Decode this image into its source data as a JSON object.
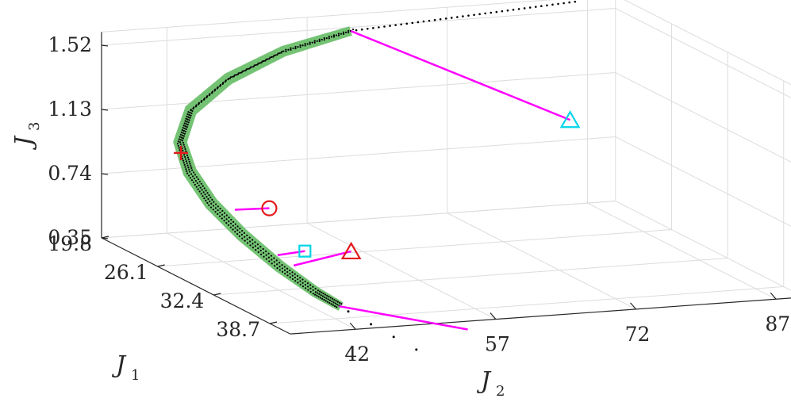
{
  "chart_data": {
    "type": "scatter",
    "projection": "3d",
    "axes": {
      "x": {
        "label": "J",
        "subscript": "1",
        "ticks": [
          "19.8",
          "26.1",
          "32.4",
          "38.7"
        ],
        "ticks_values": [
          19.8,
          26.1,
          32.4,
          38.7
        ],
        "range": [
          19.8,
          41
        ]
      },
      "y": {
        "label": "J",
        "subscript": "2",
        "ticks": [
          "42",
          "57",
          "72",
          "87"
        ],
        "ticks_values": [
          42,
          57,
          72,
          87
        ],
        "range": [
          35,
          90
        ]
      },
      "z": {
        "label": "J",
        "subscript": "3",
        "ticks": [
          "0.35",
          "1.13",
          "0.74",
          "1.52"
        ],
        "ticks_values": [
          0.35,
          1.13,
          0.74,
          1.52
        ],
        "range": [
          0.35,
          1.6
        ]
      }
    },
    "grid": true,
    "series": [
      {
        "kind": "surface",
        "color": "#5cb85c",
        "description_points": "front approximation band (J1,J2,J3)",
        "points": [
          [
            20.5,
            61,
            1.52
          ],
          [
            20.3,
            54,
            1.42
          ],
          [
            20.4,
            48,
            1.28
          ],
          [
            20.9,
            43.5,
            1.12
          ],
          [
            21.8,
            41.5,
            0.96
          ],
          [
            23.2,
            41.2,
            0.82
          ],
          [
            25.2,
            41.6,
            0.68
          ],
          [
            27.8,
            42.4,
            0.56
          ],
          [
            31.0,
            43.4,
            0.45
          ],
          [
            34.2,
            44.2,
            0.38
          ],
          [
            36.4,
            44.8,
            0.35
          ]
        ],
        "width": 2.6
      },
      {
        "kind": "points",
        "color": "#000000",
        "description_points": "sampled solutions",
        "points": [
          [
            20.5,
            64,
            1.53
          ],
          [
            20.5,
            67,
            1.54
          ],
          [
            20.5,
            70,
            1.55
          ],
          [
            20.5,
            73,
            1.56
          ],
          [
            20.5,
            76,
            1.57
          ],
          [
            20.5,
            79,
            1.58
          ],
          [
            20.5,
            82,
            1.59
          ],
          [
            20.5,
            85,
            1.6
          ],
          [
            36.5,
            45.5,
            0.32
          ],
          [
            38.0,
            46.5,
            0.28
          ],
          [
            39.5,
            47.5,
            0.24
          ],
          [
            41.0,
            48.5,
            0.2
          ]
        ]
      },
      {
        "kind": "markers",
        "items": [
          {
            "marker": "plus",
            "color": "#e31a1c",
            "point": [
              22.0,
              41.4,
              0.9
            ]
          },
          {
            "marker": "circle",
            "color": "#e31a1c",
            "point": [
              25.0,
              48.0,
              0.62
            ]
          },
          {
            "marker": "square",
            "color": "#00d5e8",
            "point": [
              29.0,
              48.0,
              0.47
            ]
          },
          {
            "marker": "triangle",
            "color": "#e31a1c",
            "point": [
              30.0,
              52.0,
              0.48
            ]
          },
          {
            "marker": "triangle",
            "color": "#00d5e8",
            "point": [
              21.0,
              84.0,
              0.9
            ]
          }
        ]
      },
      {
        "kind": "segments",
        "color": "#ff00ff",
        "items": [
          {
            "from": [
              24.8,
              44.5,
              0.62
            ],
            "to": [
              25.0,
              48.0,
              0.62
            ]
          },
          {
            "from": [
              29.4,
              44.7,
              0.47
            ],
            "to": [
              29.0,
              48.0,
              0.47
            ]
          },
          {
            "from": [
              31.0,
              44.9,
              0.45
            ],
            "to": [
              30.0,
              52.0,
              0.48
            ]
          },
          {
            "from": [
              20.5,
              61.0,
              1.52
            ],
            "to": [
              21.0,
              84.0,
              0.9
            ]
          },
          {
            "from": [
              36.0,
              45.0,
              0.34
            ],
            "to": [
              41.0,
              54.0,
              0.3
            ]
          }
        ]
      }
    ]
  }
}
